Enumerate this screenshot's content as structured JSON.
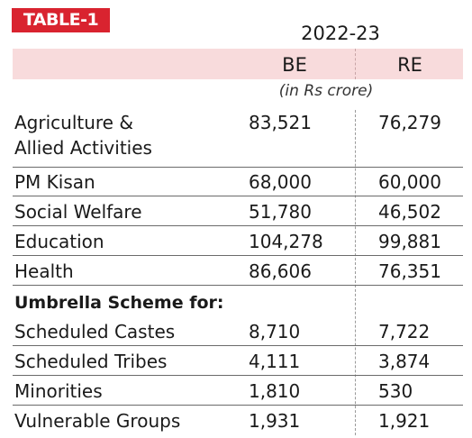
{
  "table_title": "TABLE-1",
  "year": "2022-23",
  "columns": {
    "be": "BE",
    "re": "RE"
  },
  "unit": "(in Rs crore)",
  "rows": [
    {
      "label_line1": "Agriculture &",
      "label_line2": "Allied Activities",
      "be": "83,521",
      "re": "76,279"
    },
    {
      "label": "PM Kisan",
      "be": "68,000",
      "re": "60,000"
    },
    {
      "label": "Social Welfare",
      "be": "51,780",
      "re": "46,502"
    },
    {
      "label": "Education",
      "be": "104,278",
      "re": "99,881"
    },
    {
      "label": "Health",
      "be": "86,606",
      "re": "76,351"
    }
  ],
  "subheading": "Umbrella Scheme for:",
  "sub_rows": [
    {
      "label": "Scheduled Castes",
      "be": "8,710",
      "re": "7,722"
    },
    {
      "label": "Scheduled Tribes",
      "be": "4,111",
      "re": "3,874"
    },
    {
      "label": "Minorities",
      "be": "1,810",
      "re": "530"
    },
    {
      "label": "Vulnerable Groups",
      "be": "1,931",
      "re": "1,921"
    }
  ]
}
